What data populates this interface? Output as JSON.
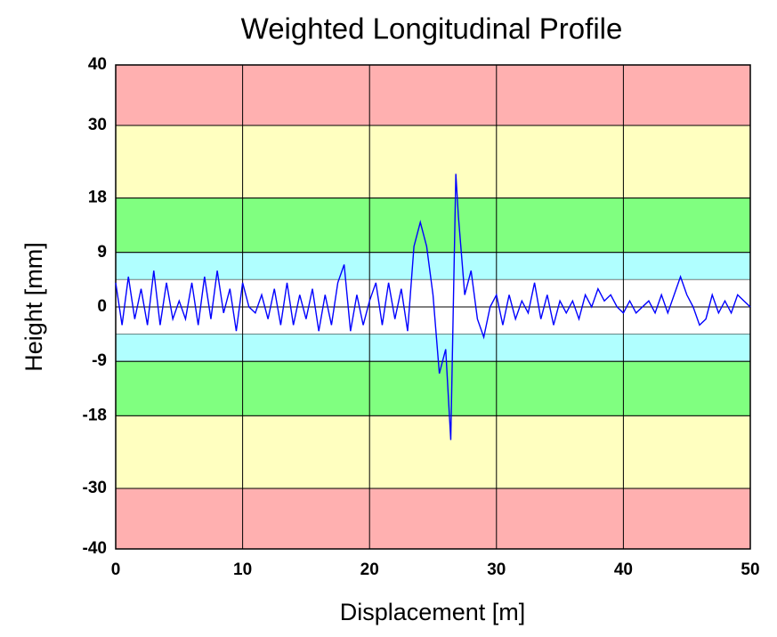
{
  "chart_data": {
    "type": "line",
    "title": "Weighted Longitudinal Profile",
    "x_label": "Displacement [m]",
    "y_label": "Height [mm]",
    "xlim": [
      0,
      50
    ],
    "xticks": [
      0,
      10,
      20,
      30,
      40,
      50
    ],
    "ylim": [
      -40,
      40
    ],
    "yticks": [
      40,
      30,
      18,
      9,
      0,
      -9,
      -18,
      -30,
      -40
    ],
    "grid": true,
    "bands": [
      {
        "from": 30,
        "to": 40,
        "color": "#ffb0b0"
      },
      {
        "from": 18,
        "to": 30,
        "color": "#ffffc0"
      },
      {
        "from": 9,
        "to": 18,
        "color": "#80ff80"
      },
      {
        "from": 4.5,
        "to": 9,
        "color": "#b0ffff"
      },
      {
        "from": -4.5,
        "to": 4.5,
        "color": "#ffffff"
      },
      {
        "from": -9,
        "to": -4.5,
        "color": "#b0ffff"
      },
      {
        "from": -18,
        "to": -9,
        "color": "#80ff80"
      },
      {
        "from": -30,
        "to": -18,
        "color": "#ffffc0"
      },
      {
        "from": -40,
        "to": -30,
        "color": "#ffb0b0"
      }
    ],
    "series": [
      {
        "color": "#0000ff",
        "x": [
          0,
          0.5,
          1,
          1.5,
          2,
          2.5,
          3,
          3.5,
          4,
          4.5,
          5,
          5.5,
          6,
          6.5,
          7,
          7.5,
          8,
          8.5,
          9,
          9.5,
          10,
          10.5,
          11,
          11.5,
          12,
          12.5,
          13,
          13.5,
          14,
          14.5,
          15,
          15.5,
          16,
          16.5,
          17,
          17.5,
          18,
          18.5,
          19,
          19.5,
          20,
          20.5,
          21,
          21.5,
          22,
          22.5,
          23,
          23.5,
          24,
          24.5,
          25,
          25.5,
          26,
          26.4,
          26.8,
          27,
          27.5,
          28,
          28.5,
          29,
          29.5,
          30,
          30.5,
          31,
          31.5,
          32,
          32.5,
          33,
          33.5,
          34,
          34.5,
          35,
          35.5,
          36,
          36.5,
          37,
          37.5,
          38,
          38.5,
          39,
          39.5,
          40,
          40.5,
          41,
          41.5,
          42,
          42.5,
          43,
          43.5,
          44,
          44.5,
          45,
          45.5,
          46,
          46.5,
          47,
          47.5,
          48,
          48.5,
          49,
          49.5,
          50
        ],
        "values": [
          4,
          -3,
          5,
          -2,
          3,
          -3,
          6,
          -3,
          4,
          -2,
          1,
          -2,
          4,
          -3,
          5,
          -2,
          6,
          -1,
          3,
          -4,
          4,
          0,
          -1,
          2,
          -2,
          3,
          -3,
          4,
          -3,
          2,
          -2,
          3,
          -4,
          2,
          -3,
          4,
          7,
          -4,
          2,
          -3,
          1,
          4,
          -3,
          4,
          -2,
          3,
          -4,
          10,
          14,
          10,
          2,
          -11,
          -7,
          -22,
          22,
          15,
          2,
          6,
          -2,
          -5,
          0,
          2,
          -3,
          2,
          -2,
          1,
          -1,
          4,
          -2,
          2,
          -3,
          1,
          -1,
          1,
          -2,
          2,
          0,
          3,
          1,
          2,
          0,
          -1,
          1,
          -1,
          0,
          1,
          -1,
          2,
          -1,
          2,
          5,
          2,
          0,
          -3,
          -2,
          2,
          -1,
          1,
          -1,
          2,
          1,
          0
        ]
      }
    ]
  }
}
